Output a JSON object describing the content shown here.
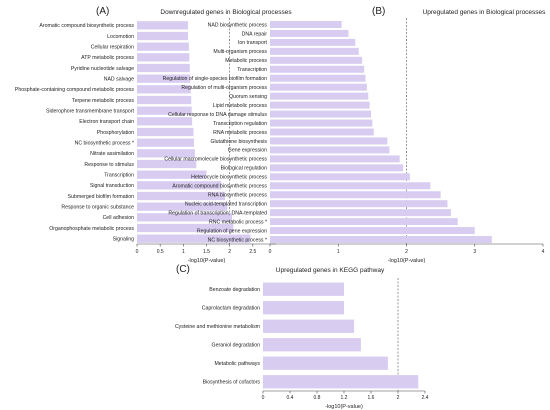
{
  "chart_data": [
    {
      "panel": "(A)",
      "type": "bar",
      "orientation": "horizontal",
      "title": "Downregulated genes in Biological processes",
      "xlabel": "-log10(P-value)",
      "xlim": [
        0,
        3
      ],
      "xticks": [
        0,
        0.5,
        1,
        1.5,
        2,
        2.5
      ],
      "threshold": 2,
      "bar_color": "#d8cdf0",
      "categories": [
        "Aromatic compound biosynthetic process",
        "Locomotion",
        "Cellular respiration",
        "ATP metabolic process",
        "Pyridine nucleotide salvage",
        "NAD salvage",
        "Phosphate-containing compound metabolic process",
        "Terpene metabolic process",
        "Siderophore transmembrane transport",
        "Electron transport chain",
        "Phosphorylation",
        "NC biosynthetic process *",
        "Nitrate assimilation",
        "Response to stimulus",
        "Transcription",
        "Signal transduction",
        "Submerged biofilm formation",
        "Response to organic substance",
        "Cell adhesion",
        "Organophosphate metabolic process",
        "Signaling"
      ],
      "values": [
        1.1,
        1.1,
        1.12,
        1.13,
        1.14,
        1.15,
        1.16,
        1.17,
        1.18,
        1.19,
        1.22,
        1.23,
        1.25,
        1.28,
        1.5,
        1.82,
        1.9,
        1.95,
        2.05,
        2.08,
        2.45
      ]
    },
    {
      "panel": "(B)",
      "type": "bar",
      "orientation": "horizontal",
      "title": "Upregulated genes in Biological processes",
      "xlabel": "-log10(P-value)",
      "xlim": [
        0,
        4
      ],
      "xticks": [
        0,
        1,
        2,
        3,
        4
      ],
      "threshold": 2,
      "bar_color": "#d8cdf0",
      "categories": [
        "NAD biosynthetic process",
        "DNA repair",
        "Ion transport",
        "Multi-organism process",
        "Metabolic process",
        "Transcription",
        "Regulation of single-species biofilm formation",
        "Regulation of multi-organism process",
        "Quorum sensing",
        "Lipid metabolic process",
        "Cellular response to DNA damage stimulus",
        "Transcription regulation",
        "RNA metabolic process",
        "Glutathione biosynthesis",
        "Gene expression",
        "Cellular macromolecule biosynthetic process",
        "Biological regulation",
        "Heterocycle biosynthetic process",
        "Aromatic compound biosynthetic process",
        "RNA biosynthetic process",
        "Nucleic acid-templated transcription",
        "Regulation of transcription, DNA-templated",
        "RNC metabolic process *",
        "Regulation of gene expression",
        "NC biosynthetic process *"
      ],
      "values": [
        1.05,
        1.15,
        1.25,
        1.3,
        1.35,
        1.38,
        1.4,
        1.42,
        1.44,
        1.46,
        1.48,
        1.5,
        1.52,
        1.72,
        1.75,
        1.9,
        1.95,
        2.05,
        2.35,
        2.5,
        2.6,
        2.65,
        2.75,
        3.0,
        3.25
      ]
    },
    {
      "panel": "(C)",
      "type": "bar",
      "orientation": "horizontal",
      "title": "Upregulated genes in KEGG pathway",
      "xlabel": "-log10(P-value)",
      "xlim": [
        0,
        2.4
      ],
      "xticks": [
        0,
        0.4,
        0.8,
        1.2,
        1.6,
        2,
        2.4
      ],
      "threshold": 2,
      "bar_color": "#d8cdf0",
      "categories": [
        "Benzoate degradation",
        "Caprolactam degradation",
        "Cysteine and methionine metabolism",
        "Geraniol degradation",
        "Metabolic pathways",
        "Biosynthesis of cofactors"
      ],
      "values": [
        1.2,
        1.2,
        1.35,
        1.45,
        1.85,
        2.3
      ]
    }
  ]
}
